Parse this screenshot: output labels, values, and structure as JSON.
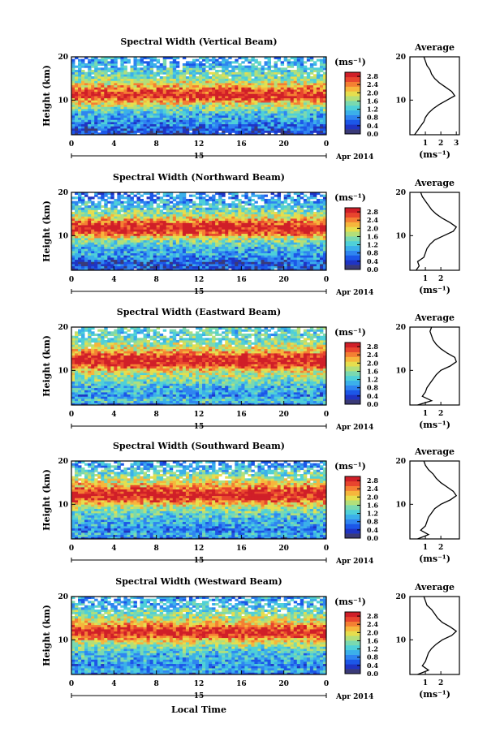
{
  "colors": {
    "colormap": [
      "#3a3a78",
      "#1f34c4",
      "#1c57e8",
      "#2f85f0",
      "#3bb0ea",
      "#4fd0d8",
      "#7ad9b0",
      "#b3df7a",
      "#e6de4e",
      "#f6b63c",
      "#f47f33",
      "#e8452e",
      "#d01f28"
    ]
  },
  "figure": {
    "shared_xlabel": "Local Time",
    "date_label": "Apr 2014",
    "avg_title": "Average",
    "unit_label": "(ms⁻¹)"
  },
  "chart_data": [
    {
      "type": "heatmap",
      "title": "Spectral Width (Vertical Beam)",
      "xlabel": "",
      "ylabel": "Height (km)",
      "xlim": [
        0,
        24
      ],
      "ylim": [
        2,
        20
      ],
      "xticks": [
        "0",
        "4",
        "8",
        "12",
        "16",
        "20",
        "0"
      ],
      "yticks": [
        "20",
        "10"
      ],
      "day_marker": "15",
      "colorbar_label": "(ms⁻¹)",
      "colorbar_ticks": [
        "2.8",
        "2.4",
        "2.0",
        "1.6",
        "1.2",
        "0.8",
        "0.4",
        "0.0"
      ],
      "colorbar_range": [
        0,
        3.0
      ],
      "average_profile": {
        "xticks": [
          "1",
          "2",
          "3"
        ],
        "xlim": [
          0,
          3.2
        ],
        "height": [
          2,
          3,
          4,
          5,
          6,
          7,
          8,
          9,
          10,
          11,
          12,
          13,
          14,
          15,
          16,
          17,
          18,
          19,
          20
        ],
        "value": [
          0.3,
          0.5,
          0.7,
          0.9,
          1.0,
          1.2,
          1.5,
          1.9,
          2.4,
          2.9,
          2.7,
          2.3,
          1.9,
          1.6,
          1.4,
          1.3,
          1.1,
          1.0,
          0.9
        ]
      }
    },
    {
      "type": "heatmap",
      "title": "Spectral Width (Northward Beam)",
      "xlabel": "",
      "ylabel": "Height (km)",
      "xlim": [
        0,
        24
      ],
      "ylim": [
        2,
        20
      ],
      "xticks": [
        "0",
        "4",
        "8",
        "12",
        "16",
        "20",
        "0"
      ],
      "yticks": [
        "20",
        "10"
      ],
      "day_marker": "15",
      "colorbar_label": "(ms⁻¹)",
      "colorbar_ticks": [
        "2.8",
        "2.4",
        "2.0",
        "1.6",
        "1.2",
        "0.8",
        "0.4",
        "0.0"
      ],
      "colorbar_range": [
        0,
        3.0
      ],
      "average_profile": {
        "xticks": [
          "1",
          "2"
        ],
        "xlim": [
          0,
          3.2
        ],
        "height": [
          2,
          3,
          4,
          5,
          6,
          7,
          8,
          9,
          10,
          11,
          12,
          13,
          14,
          15,
          16,
          17,
          18,
          19,
          20
        ],
        "value": [
          0.4,
          0.6,
          0.5,
          0.9,
          1.0,
          1.1,
          1.3,
          1.6,
          2.2,
          2.8,
          3.0,
          2.6,
          2.1,
          1.7,
          1.4,
          1.2,
          1.0,
          0.8,
          0.7
        ]
      }
    },
    {
      "type": "heatmap",
      "title": "Spectral Width (Eastward Beam)",
      "xlabel": "",
      "ylabel": "Height (km)",
      "xlim": [
        0,
        24
      ],
      "ylim": [
        2,
        20
      ],
      "xticks": [
        "0",
        "4",
        "8",
        "12",
        "16",
        "20",
        "0"
      ],
      "yticks": [
        "20",
        "10"
      ],
      "day_marker": "15",
      "colorbar_label": "(ms⁻¹)",
      "colorbar_ticks": [
        "2.8",
        "2.4",
        "2.0",
        "1.6",
        "1.2",
        "0.8",
        "0.4",
        "0.0"
      ],
      "colorbar_range": [
        0,
        3.0
      ],
      "average_profile": {
        "xticks": [
          "1",
          "2"
        ],
        "xlim": [
          0,
          3.2
        ],
        "height": [
          2,
          3,
          4,
          5,
          6,
          7,
          8,
          9,
          10,
          11,
          12,
          13,
          14,
          15,
          16,
          17,
          18,
          19,
          20
        ],
        "value": [
          0.5,
          1.4,
          0.8,
          1.0,
          1.1,
          1.3,
          1.5,
          1.7,
          2.0,
          2.6,
          3.0,
          2.9,
          2.4,
          2.0,
          1.7,
          1.5,
          1.4,
          1.3,
          1.4
        ]
      }
    },
    {
      "type": "heatmap",
      "title": "Spectral Width (Southward Beam)",
      "xlabel": "",
      "ylabel": "Height (km)",
      "xlim": [
        0,
        24
      ],
      "ylim": [
        2,
        20
      ],
      "xticks": [
        "0",
        "4",
        "8",
        "12",
        "16",
        "20",
        "0"
      ],
      "yticks": [
        "20",
        "10"
      ],
      "day_marker": "15",
      "colorbar_label": "(ms⁻¹)",
      "colorbar_ticks": [
        "2.8",
        "2.4",
        "2.0",
        "1.6",
        "1.2",
        "0.8",
        "0.4",
        "0.0"
      ],
      "colorbar_range": [
        0,
        3.0
      ],
      "average_profile": {
        "xticks": [
          "1",
          "2"
        ],
        "xlim": [
          0,
          3.2
        ],
        "height": [
          2,
          3,
          4,
          5,
          6,
          7,
          8,
          9,
          10,
          11,
          12,
          13,
          14,
          15,
          16,
          17,
          18,
          19,
          20
        ],
        "value": [
          0.5,
          1.2,
          0.7,
          1.0,
          1.1,
          1.2,
          1.4,
          1.6,
          2.0,
          2.6,
          3.0,
          2.8,
          2.4,
          2.0,
          1.7,
          1.5,
          1.2,
          1.0,
          0.9
        ]
      }
    },
    {
      "type": "heatmap",
      "title": "Spectral Width (Westward Beam)",
      "xlabel": "Local Time",
      "ylabel": "Height (km)",
      "xlim": [
        0,
        24
      ],
      "ylim": [
        2,
        20
      ],
      "xticks": [
        "0",
        "4",
        "8",
        "12",
        "16",
        "20",
        "0"
      ],
      "yticks": [
        "20",
        "10"
      ],
      "day_marker": "15",
      "colorbar_label": "(ms⁻¹)",
      "colorbar_ticks": [
        "2.8",
        "2.4",
        "2.0",
        "1.6",
        "1.2",
        "0.8",
        "0.4",
        "0.0"
      ],
      "colorbar_range": [
        0,
        3.0
      ],
      "average_profile": {
        "xticks": [
          "1",
          "2"
        ],
        "xlim": [
          0,
          3.2
        ],
        "height": [
          2,
          3,
          4,
          5,
          6,
          7,
          8,
          9,
          10,
          11,
          12,
          13,
          14,
          15,
          16,
          17,
          18,
          19,
          20
        ],
        "value": [
          0.5,
          1.2,
          0.8,
          1.0,
          1.1,
          1.2,
          1.4,
          1.7,
          2.1,
          2.7,
          3.0,
          2.6,
          2.1,
          1.8,
          1.6,
          1.4,
          1.1,
          1.0,
          0.9
        ]
      }
    }
  ]
}
